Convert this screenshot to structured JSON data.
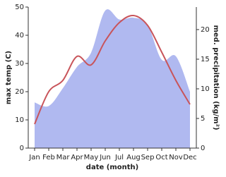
{
  "chart_data": {
    "type": "line-area",
    "x_label": "date (month)",
    "y_label": "max temp (C)",
    "y2_label": "med. precipitation (kg/m²)",
    "categories": [
      "Jan",
      "Feb",
      "Mar",
      "Apr",
      "May",
      "Jun",
      "Jul",
      "Aug",
      "Sep",
      "Oct",
      "Nov",
      "Dec"
    ],
    "series": [
      {
        "name": "max temp",
        "color": "#c8545a",
        "values": [
          8.5,
          20,
          24,
          32.5,
          29.5,
          38,
          44.5,
          47,
          43.5,
          34,
          24,
          15.5
        ]
      },
      {
        "name": "med. precipitation",
        "color": "#b0b9f0",
        "axis": "y2",
        "values": [
          7.7,
          7.1,
          10.1,
          13.7,
          16.1,
          23.2,
          21.7,
          22,
          20.8,
          14.9,
          15.5,
          9.5
        ]
      }
    ],
    "ylim": [
      0,
      50
    ],
    "yticks": [
      0,
      10,
      20,
      30,
      40,
      50
    ],
    "y2lim": [
      0,
      23.8
    ],
    "y2ticks": [
      0,
      5,
      10,
      15,
      20
    ]
  }
}
